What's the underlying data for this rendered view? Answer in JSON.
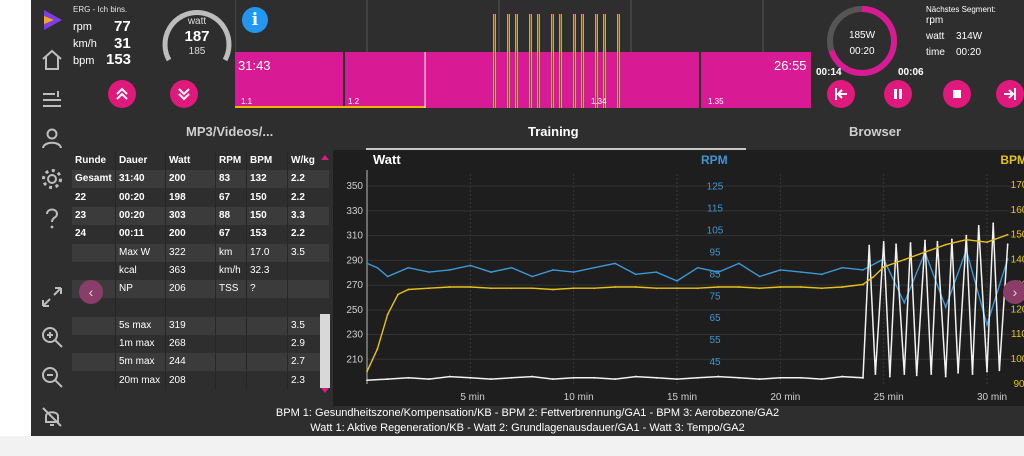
{
  "app": {
    "mode_label": "ERG - Ich bins.",
    "stats": [
      {
        "label": "rpm",
        "value": "77"
      },
      {
        "label": "km/h",
        "value": "31"
      },
      {
        "label": "bpm",
        "value": "153"
      }
    ],
    "gauge": {
      "label": "watt",
      "value": "187",
      "target": "185"
    }
  },
  "workout": {
    "elapsed": "31:43",
    "remaining": "26:55",
    "segments": [
      "1.1",
      "1.2",
      "1.34",
      "1.35"
    ],
    "progress": 0.33,
    "bar_color": "#d81b94",
    "interval_color": "#e8a317"
  },
  "current_segment": {
    "watt": "185W",
    "time": "00:20",
    "elapsed": "00:14",
    "remaining": "00:06",
    "progress": 0.7
  },
  "next_segment": {
    "title": "Nächstes Segment:",
    "rpm_label": "rpm",
    "watt_label": "watt",
    "watt_value": "314W",
    "time_label": "time",
    "time_value": "00:20"
  },
  "tabs": [
    {
      "label": "MP3/Videos/..."
    },
    {
      "label": "Training"
    },
    {
      "label": "Browser"
    }
  ],
  "table": {
    "headers": [
      "Runde",
      "Dauer",
      "Watt",
      "RPM",
      "BPM",
      "W/kg"
    ],
    "rows": [
      [
        "Gesamt",
        "31:40",
        "200",
        "83",
        "132",
        "2.2"
      ],
      [
        "22",
        "00:20",
        "198",
        "67",
        "150",
        "2.2"
      ],
      [
        "23",
        "00:20",
        "303",
        "88",
        "150",
        "3.3"
      ],
      [
        "24",
        "00:11",
        "200",
        "67",
        "153",
        "2.2"
      ]
    ],
    "stats": [
      [
        "",
        "Max W",
        "322",
        "km",
        "17.0",
        "3.5"
      ],
      [
        "",
        "kcal",
        "363",
        "km/h",
        "32.3",
        ""
      ],
      [
        "",
        "NP",
        "206",
        "TSS",
        "?",
        ""
      ],
      [
        "",
        "",
        "",
        "",
        "",
        ""
      ],
      [
        "",
        "5s max",
        "319",
        "",
        "",
        "3.5"
      ],
      [
        "",
        "1m max",
        "268",
        "",
        "",
        "2.9"
      ],
      [
        "",
        "5m max",
        "244",
        "",
        "",
        "2.7"
      ],
      [
        "",
        "20m max",
        "208",
        "",
        "",
        "2.3"
      ]
    ]
  },
  "chart_data": {
    "type": "line",
    "titles": {
      "left": "Watt",
      "middle": "RPM",
      "right": "BPM"
    },
    "xlabel": "min",
    "x_ticks": [
      5,
      10,
      15,
      20,
      25,
      30
    ],
    "xlim": [
      0,
      31.5
    ],
    "watt_axis": {
      "ticks": [
        350,
        330,
        310,
        290,
        270,
        250,
        230,
        210
      ],
      "ylim": [
        190,
        355
      ]
    },
    "rpm_axis": {
      "ticks": [
        125,
        115,
        105,
        95,
        85,
        75,
        65,
        55,
        45
      ],
      "ylim": [
        35,
        128
      ]
    },
    "bpm_axis": {
      "ticks": [
        170,
        160,
        150,
        140,
        130,
        120,
        110,
        100,
        90
      ],
      "ylim": [
        90,
        172
      ]
    },
    "colors": {
      "watt": "#f2f2f2",
      "rpm": "#3b98d6",
      "bpm": "#e8c21a",
      "target": "#ffffff"
    },
    "series": [
      {
        "name": "Watt",
        "axis": "watt",
        "x": [
          0,
          1,
          2,
          3,
          4,
          5,
          6,
          7,
          8,
          9,
          10,
          11,
          12,
          13,
          14,
          15,
          16,
          17,
          18,
          19,
          20,
          21,
          22,
          23,
          24,
          24.3,
          24.6,
          25,
          25.3,
          25.6,
          26,
          26.3,
          26.6,
          27,
          27.3,
          27.6,
          28,
          28.3,
          28.6,
          29,
          29.3,
          29.6,
          30,
          30.3,
          30.6,
          31
        ],
        "values": [
          193,
          194,
          195,
          194,
          196,
          195,
          194,
          195,
          196,
          194,
          195,
          195,
          194,
          196,
          195,
          194,
          195,
          196,
          195,
          194,
          195,
          195,
          194,
          196,
          195,
          302,
          198,
          305,
          196,
          303,
          198,
          304,
          197,
          306,
          198,
          305,
          196,
          307,
          199,
          310,
          198,
          318,
          200,
          320,
          201,
          303
        ]
      },
      {
        "name": "RPM",
        "axis": "rpm",
        "x": [
          0,
          0.5,
          1,
          2,
          3,
          4,
          5,
          6,
          7,
          8,
          9,
          10,
          11,
          12,
          13,
          14,
          15,
          16,
          17,
          18,
          19,
          20,
          21,
          22,
          23,
          24,
          25,
          26,
          27,
          28,
          29,
          30,
          31
        ],
        "values": [
          90,
          88,
          84,
          88,
          86,
          87,
          89,
          86,
          88,
          84,
          87,
          86,
          88,
          90,
          85,
          86,
          82,
          88,
          86,
          90,
          84,
          87,
          86,
          85,
          88,
          87,
          92,
          72,
          95,
          70,
          96,
          62,
          92
        ]
      },
      {
        "name": "BPM",
        "axis": "bpm",
        "x": [
          0,
          0.5,
          1,
          1.5,
          2,
          3,
          4,
          5,
          6,
          7,
          8,
          9,
          10,
          11,
          12,
          13,
          14,
          15,
          16,
          17,
          18,
          19,
          20,
          21,
          22,
          23,
          24,
          24.5,
          25,
          26,
          27,
          28,
          29,
          30,
          31
        ],
        "values": [
          95,
          104,
          118,
          126,
          128,
          128.5,
          129,
          129,
          128.5,
          128.5,
          128.5,
          128,
          128.5,
          128.5,
          129,
          129,
          128.5,
          128.5,
          128.5,
          129,
          129,
          128.5,
          129,
          129,
          128.5,
          129,
          130,
          133,
          137,
          140,
          143,
          146,
          148,
          147,
          150
        ]
      }
    ],
    "legend": [
      "BPM 1: Gesundheitszone/Kompensation/KB - BPM 2: Fettverbrennung/GA1 - BPM 3: Aerobezone/GA2",
      "Watt 1: Aktive Regeneration/KB - Watt 2: Grundlagenausdauer/GA1 - Watt 3: Tempo/GA2"
    ]
  }
}
